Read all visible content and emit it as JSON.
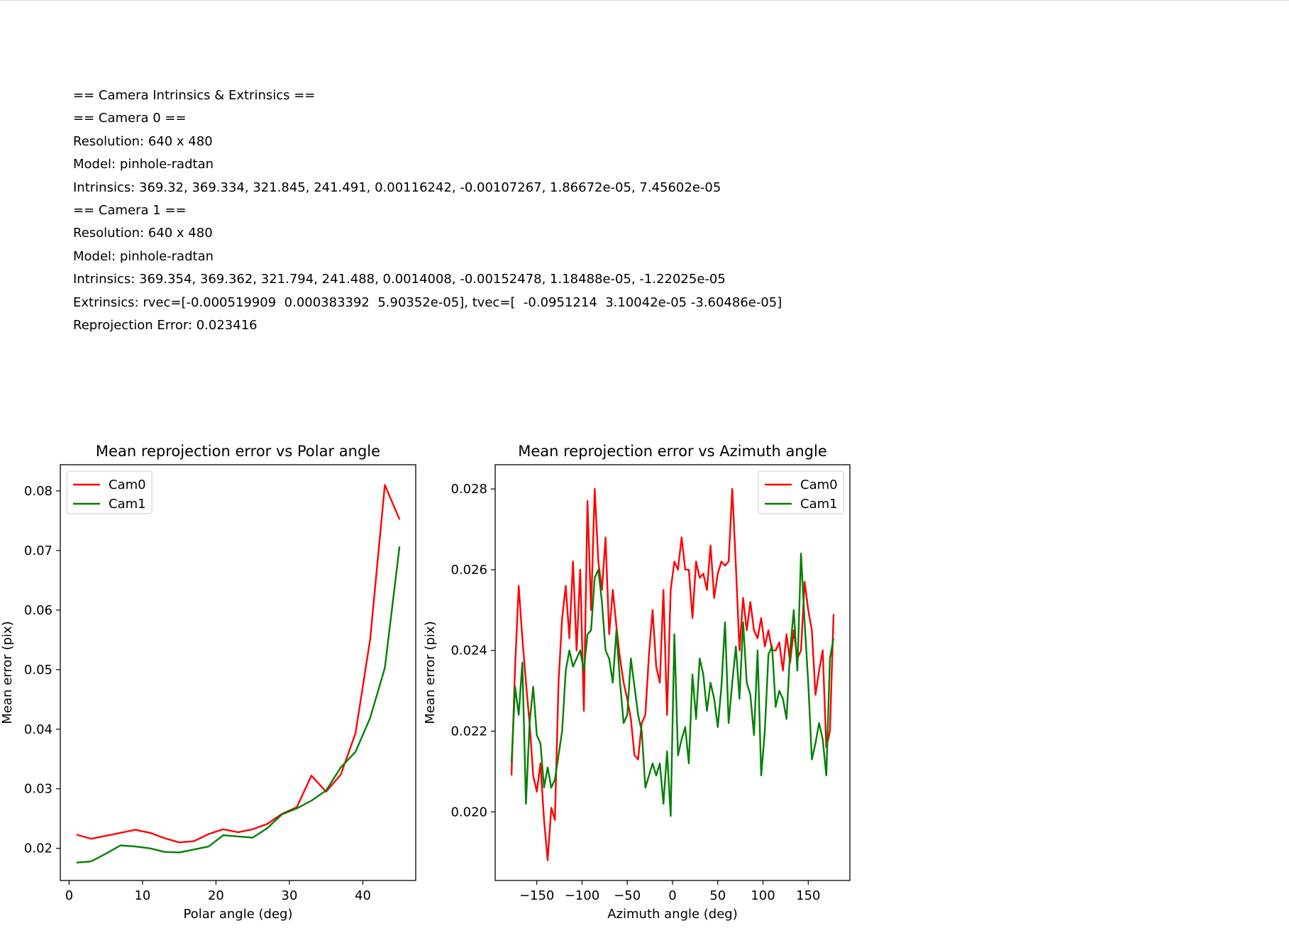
{
  "report": {
    "lines": [
      "== Camera Intrinsics & Extrinsics ==",
      "== Camera 0 ==",
      "Resolution: 640 x 480",
      "Model: pinhole-radtan",
      "Intrinsics: 369.32, 369.334, 321.845, 241.491, 0.00116242, -0.00107267, 1.86672e-05, 7.45602e-05",
      "== Camera 1 ==",
      "Resolution: 640 x 480",
      "Model: pinhole-radtan",
      "Intrinsics: 369.354, 369.362, 321.794, 241.488, 0.0014008, -0.00152478, 1.18488e-05, -1.22025e-05",
      "Extrinsics: rvec=[-0.000519909  0.000383392  5.90352e-05], tvec=[  -0.0951214  3.10042e-05 -3.60486e-05]",
      "Reprojection Error: 0.023416"
    ]
  },
  "chart_data": [
    {
      "type": "line",
      "title": "Mean reprojection error vs Polar angle",
      "xlabel": "Polar angle (deg)",
      "ylabel": "Mean error (pix)",
      "xlim": [
        -1.2,
        47.2
      ],
      "ylim": [
        0.0146,
        0.0844
      ],
      "xticks": [
        0,
        10,
        20,
        30,
        40
      ],
      "yticks": [
        0.02,
        0.03,
        0.04,
        0.05,
        0.06,
        0.07,
        0.08
      ],
      "grid": false,
      "legend": "top-left",
      "x": [
        1,
        3,
        5,
        7,
        9,
        11,
        13,
        15,
        17,
        19,
        21,
        23,
        25,
        27,
        29,
        31,
        33,
        35,
        37,
        39,
        41,
        43,
        45
      ],
      "series": [
        {
          "name": "Cam0",
          "color": "#ff0000",
          "values": [
            0.0223,
            0.0216,
            0.0221,
            0.0226,
            0.0231,
            0.0226,
            0.0217,
            0.021,
            0.0212,
            0.0224,
            0.0232,
            0.0227,
            0.0232,
            0.0241,
            0.0258,
            0.0269,
            0.0322,
            0.0295,
            0.0324,
            0.0393,
            0.0551,
            0.081,
            0.0752
          ]
        },
        {
          "name": "Cam1",
          "color": "#008000",
          "values": [
            0.0176,
            0.0178,
            0.0191,
            0.0205,
            0.0203,
            0.02,
            0.0194,
            0.0193,
            0.0198,
            0.0203,
            0.0222,
            0.022,
            0.0218,
            0.0234,
            0.0257,
            0.0267,
            0.028,
            0.0297,
            0.0336,
            0.0362,
            0.0419,
            0.0503,
            0.0707
          ]
        }
      ]
    },
    {
      "type": "line",
      "title": "Mean reprojection error vs Azimuth angle",
      "xlabel": "Azimuth angle (deg)",
      "ylabel": "Mean error (pix)",
      "xlim": [
        -196,
        196
      ],
      "ylim": [
        0.0183,
        0.0286
      ],
      "xticks": [
        -150,
        -100,
        -50,
        0,
        50,
        100,
        150
      ],
      "yticks": [
        0.02,
        0.022,
        0.024,
        0.026,
        0.028
      ],
      "grid": false,
      "legend": "top-right",
      "x": [
        -178,
        -174,
        -170,
        -166,
        -162,
        -158,
        -154,
        -150,
        -146,
        -142,
        -138,
        -134,
        -130,
        -126,
        -122,
        -118,
        -114,
        -110,
        -106,
        -102,
        -98,
        -94,
        -90,
        -86,
        -82,
        -78,
        -74,
        -70,
        -66,
        -62,
        -58,
        -54,
        -50,
        -46,
        -42,
        -38,
        -34,
        -30,
        -26,
        -22,
        -18,
        -14,
        -10,
        -6,
        -2,
        2,
        6,
        10,
        14,
        18,
        22,
        26,
        30,
        34,
        38,
        42,
        46,
        50,
        54,
        58,
        62,
        66,
        70,
        74,
        78,
        82,
        86,
        90,
        94,
        98,
        102,
        106,
        110,
        114,
        118,
        122,
        126,
        130,
        134,
        138,
        142,
        146,
        150,
        154,
        158,
        162,
        166,
        170,
        174,
        178
      ],
      "series": [
        {
          "name": "Cam0",
          "color": "#ff0000",
          "values": [
            0.0209,
            0.0236,
            0.0256,
            0.0243,
            0.0232,
            0.0222,
            0.0209,
            0.0205,
            0.0212,
            0.0198,
            0.0188,
            0.0201,
            0.0198,
            0.0232,
            0.0248,
            0.0256,
            0.0243,
            0.0262,
            0.024,
            0.026,
            0.0225,
            0.0277,
            0.025,
            0.028,
            0.0262,
            0.0255,
            0.0268,
            0.0244,
            0.0255,
            0.0246,
            0.0238,
            0.0232,
            0.0228,
            0.0223,
            0.0214,
            0.0213,
            0.0222,
            0.0224,
            0.0239,
            0.025,
            0.0236,
            0.0232,
            0.0255,
            0.0224,
            0.0255,
            0.0262,
            0.026,
            0.0268,
            0.026,
            0.026,
            0.0248,
            0.0262,
            0.0258,
            0.0259,
            0.0255,
            0.0266,
            0.0253,
            0.0259,
            0.0262,
            0.0261,
            0.0262,
            0.028,
            0.0261,
            0.024,
            0.0253,
            0.0245,
            0.0252,
            0.0245,
            0.0243,
            0.0248,
            0.0241,
            0.0245,
            0.024,
            0.024,
            0.0242,
            0.0235,
            0.0244,
            0.0237,
            0.0245,
            0.0238,
            0.024,
            0.0257,
            0.025,
            0.0245,
            0.0229,
            0.0235,
            0.024,
            0.0216,
            0.022,
            0.0249
          ]
        },
        {
          "name": "Cam1",
          "color": "#008000",
          "values": [
            0.0212,
            0.0231,
            0.0224,
            0.0237,
            0.0202,
            0.0222,
            0.0231,
            0.0219,
            0.0217,
            0.0206,
            0.0211,
            0.0206,
            0.0208,
            0.0214,
            0.022,
            0.0235,
            0.024,
            0.0236,
            0.0238,
            0.024,
            0.0235,
            0.0244,
            0.0245,
            0.0258,
            0.026,
            0.0252,
            0.024,
            0.0238,
            0.0232,
            0.0245,
            0.0232,
            0.0222,
            0.0224,
            0.0238,
            0.0231,
            0.0224,
            0.022,
            0.0206,
            0.0209,
            0.0212,
            0.0209,
            0.0212,
            0.0202,
            0.0215,
            0.0199,
            0.0244,
            0.0214,
            0.0218,
            0.0221,
            0.0212,
            0.0234,
            0.0223,
            0.0238,
            0.0234,
            0.0225,
            0.0232,
            0.0228,
            0.0221,
            0.0231,
            0.0247,
            0.0222,
            0.0232,
            0.0241,
            0.0228,
            0.0247,
            0.0232,
            0.0229,
            0.0219,
            0.024,
            0.0209,
            0.022,
            0.0239,
            0.0241,
            0.0226,
            0.023,
            0.0228,
            0.0223,
            0.024,
            0.025,
            0.0235,
            0.0264,
            0.0247,
            0.0232,
            0.0213,
            0.0217,
            0.0222,
            0.0218,
            0.0209,
            0.0238,
            0.0243
          ]
        }
      ]
    }
  ]
}
